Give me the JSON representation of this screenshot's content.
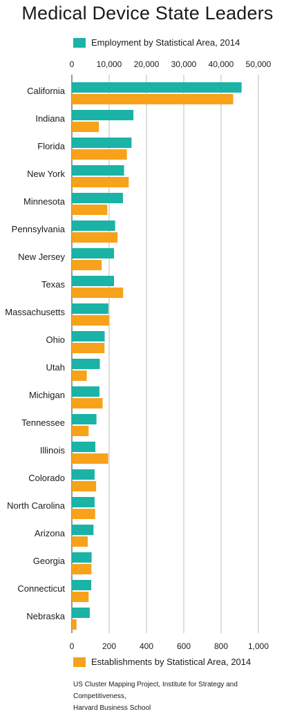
{
  "chart_data": {
    "type": "bar",
    "orientation": "horizontal",
    "title": "Medical Device State Leaders",
    "categories": [
      "California",
      "Indiana",
      "Florida",
      "New York",
      "Minnesota",
      "Pennsylvania",
      "New Jersey",
      "Texas",
      "Massachusetts",
      "Ohio",
      "Utah",
      "Michigan",
      "Tennessee",
      "Illinois",
      "Colorado",
      "North Carolina",
      "Arizona",
      "Georgia",
      "Connecticut",
      "Nebraska"
    ],
    "series": [
      {
        "name": "Employment by Statistical Area, 2014",
        "color": "#1ab3a6",
        "axis": "top",
        "values": [
          45500,
          16500,
          16000,
          14000,
          13700,
          11600,
          11300,
          11300,
          9800,
          8800,
          7500,
          7400,
          6600,
          6300,
          6100,
          6100,
          5800,
          5300,
          5200,
          4800
        ]
      },
      {
        "name": "Establishments by Statistical Area, 2014",
        "color": "#f7a21b",
        "axis": "bottom",
        "values": [
          865,
          145,
          295,
          305,
          190,
          245,
          160,
          275,
          200,
          175,
          80,
          165,
          90,
          195,
          130,
          125,
          85,
          105,
          90,
          25
        ]
      }
    ],
    "x_top": {
      "lim": [
        0,
        50000
      ],
      "ticks": [
        "0",
        "10,000",
        "20,000",
        "30,000",
        "40,000",
        "50,000"
      ]
    },
    "x_bottom": {
      "lim": [
        0,
        1000
      ],
      "ticks": [
        "0",
        "200",
        "400",
        "600",
        "800",
        "1,000"
      ]
    },
    "grid": true
  },
  "source": {
    "line1": "US Cluster Mapping Project, Institute for Strategy and Competitiveness,",
    "line2": "Harvard Business School"
  }
}
